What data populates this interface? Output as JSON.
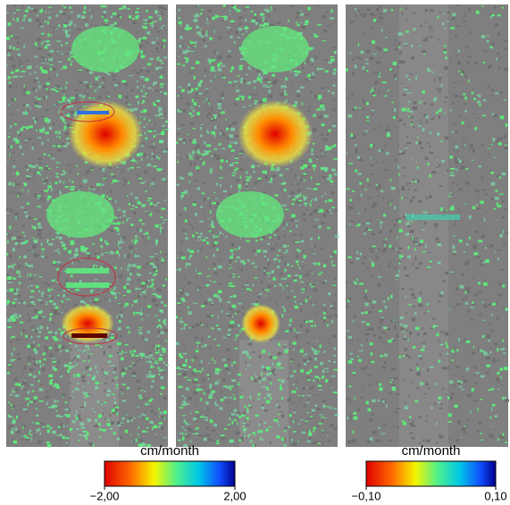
{
  "colorbars": [
    {
      "label": "cm/month",
      "range": [
        -2,
        2
      ],
      "ticks": [
        {
          "value": -2,
          "label": "−2,00"
        },
        {
          "value": 2,
          "label": "2,00"
        }
      ]
    },
    {
      "label": "cm/month",
      "range": [
        -0.1,
        0.1
      ],
      "ticks": [
        {
          "value": -0.1,
          "label": "−0,10"
        },
        {
          "value": 0.1,
          "label": "0,10"
        }
      ]
    }
  ]
}
